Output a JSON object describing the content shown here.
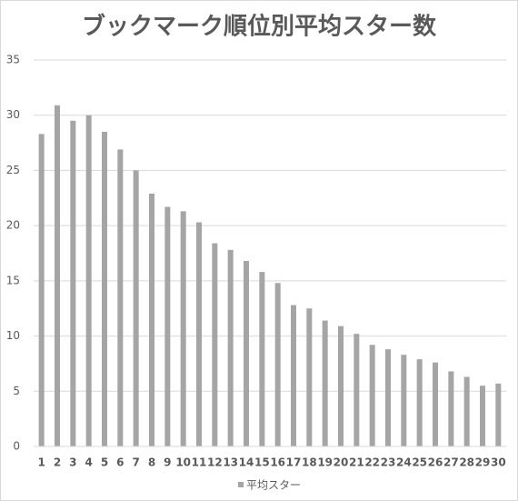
{
  "chart_data": {
    "type": "bar",
    "title": "ブックマーク順位別平均スター数",
    "categories": [
      "1",
      "2",
      "3",
      "4",
      "5",
      "6",
      "7",
      "8",
      "9",
      "10",
      "11",
      "12",
      "13",
      "14",
      "15",
      "16",
      "17",
      "18",
      "19",
      "20",
      "21",
      "22",
      "23",
      "24",
      "25",
      "26",
      "27",
      "28",
      "29",
      "30"
    ],
    "series": [
      {
        "name": "平均スター",
        "color": "#a5a5a5",
        "values": [
          28.3,
          30.9,
          29.5,
          30.0,
          28.5,
          26.9,
          25.0,
          22.9,
          21.7,
          21.3,
          20.3,
          18.4,
          17.8,
          16.8,
          15.8,
          14.8,
          12.8,
          12.5,
          11.4,
          10.9,
          10.2,
          9.2,
          8.8,
          8.3,
          7.9,
          7.6,
          6.8,
          6.3,
          5.5,
          5.7
        ]
      }
    ],
    "ylim": [
      0,
      35
    ],
    "yticks": [
      0,
      5,
      10,
      15,
      20,
      25,
      30,
      35
    ],
    "grid": true,
    "legend": "bottom"
  }
}
